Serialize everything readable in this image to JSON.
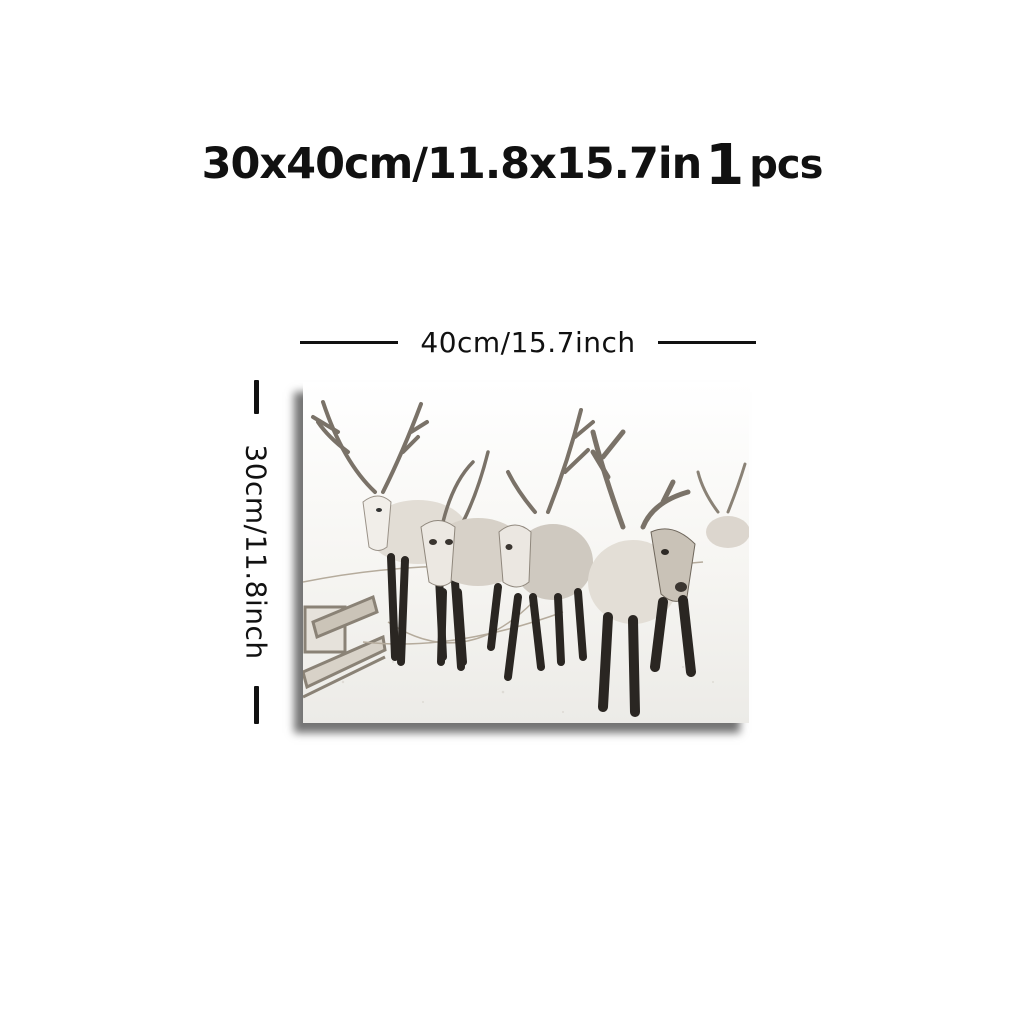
{
  "product": {
    "size_text": "30x40cm/11.8x15.7in",
    "quantity": "1",
    "quantity_unit": "pcs"
  },
  "dimensions": {
    "width_label": "40cm/15.7inch",
    "height_label": "30cm/11.8inch"
  },
  "artwork": {
    "subject": "reindeer-sled-snow-photo",
    "palette": {
      "snow": "#f4f3f0",
      "fur_light": "#d9d4cc",
      "fur_dark": "#4a4540",
      "legs": "#2a2622"
    }
  }
}
